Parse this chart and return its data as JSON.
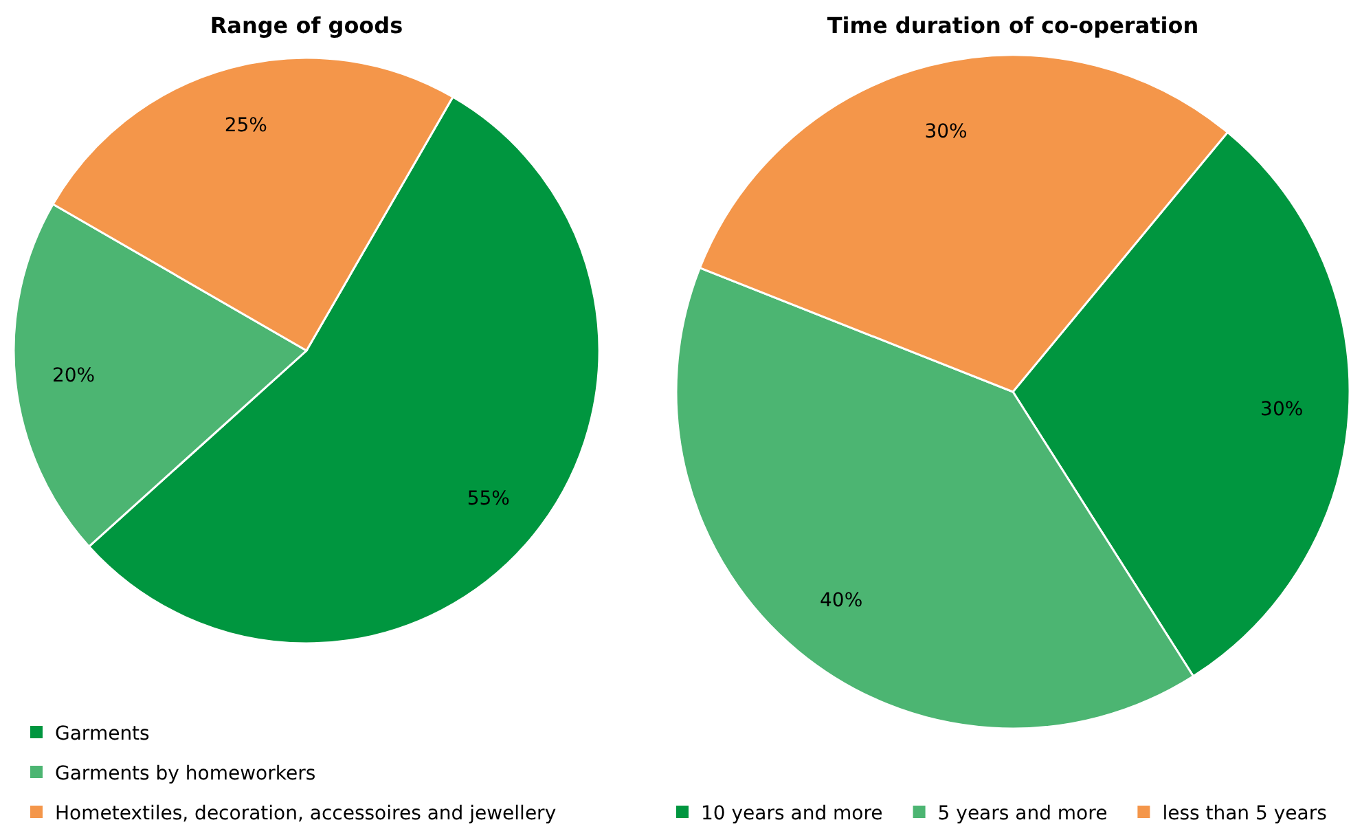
{
  "chart_data": [
    {
      "type": "pie",
      "title": "Range of goods",
      "categories": [
        "Garments",
        "Garments by homeworkers",
        "Hometextiles, decoration, accessoires and jewellery"
      ],
      "values": [
        55,
        20,
        25
      ],
      "colors": [
        "#00963f",
        "#4cb572",
        "#f4964a"
      ],
      "value_labels": [
        "55%",
        "20%",
        "25%"
      ],
      "legend": "bottom"
    },
    {
      "type": "pie",
      "title": "Time duration of co-operation",
      "categories": [
        "10 years and more",
        "5 years and more",
        "less than 5 years"
      ],
      "values": [
        30,
        40,
        30
      ],
      "colors": [
        "#00963f",
        "#4cb572",
        "#f4964a"
      ],
      "value_labels": [
        "30%",
        "40%",
        "30%"
      ],
      "legend": "bottom"
    }
  ]
}
